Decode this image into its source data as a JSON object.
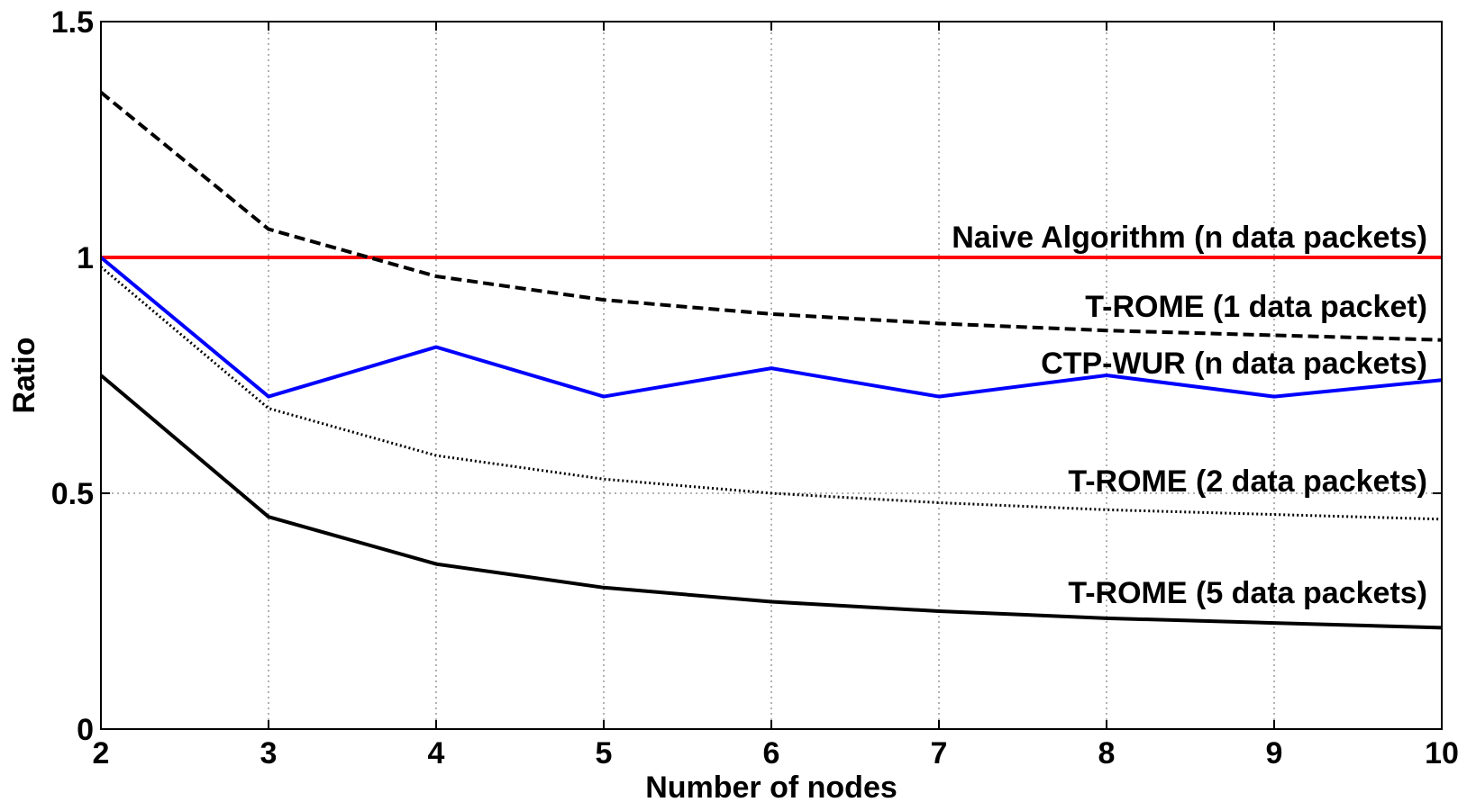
{
  "chart_data": {
    "type": "line",
    "title": "",
    "xlabel": "Number of nodes",
    "ylabel": "Ratio",
    "xlim": [
      2,
      10
    ],
    "ylim": [
      0,
      1.5
    ],
    "x": [
      2,
      3,
      4,
      5,
      6,
      7,
      8,
      9,
      10
    ],
    "xticks": [
      "2",
      "3",
      "4",
      "5",
      "6",
      "7",
      "8",
      "9",
      "10"
    ],
    "yticks": [
      {
        "value": 0,
        "label": "0"
      },
      {
        "value": 0.5,
        "label": "0.5"
      },
      {
        "value": 1,
        "label": "1"
      },
      {
        "value": 1.5,
        "label": "1.5"
      }
    ],
    "grid": true,
    "series": [
      {
        "id": "naive",
        "name": "Naive Algorithm (n data packets)",
        "color": "#ff0000",
        "style": "solid",
        "values": [
          1,
          1,
          1,
          1,
          1,
          1,
          1,
          1,
          1
        ]
      },
      {
        "id": "trome1",
        "name": "T-ROME (1 data packet)",
        "color": "#000000",
        "style": "dashed",
        "values": [
          1.35,
          1.06,
          0.96,
          0.91,
          0.88,
          0.86,
          0.845,
          0.835,
          0.825
        ]
      },
      {
        "id": "ctpwur",
        "name": "CTP-WUR (n data packets)",
        "color": "#0000ff",
        "style": "solid",
        "values": [
          1,
          0.705,
          0.81,
          0.705,
          0.765,
          0.705,
          0.75,
          0.705,
          0.74
        ]
      },
      {
        "id": "trome2",
        "name": "T-ROME (2 data packets)",
        "color": "#000000",
        "style": "dotted",
        "values": [
          0.98,
          0.68,
          0.58,
          0.53,
          0.5,
          0.48,
          0.465,
          0.455,
          0.445
        ]
      },
      {
        "id": "trome5",
        "name": "T-ROME (5 data packets)",
        "color": "#000000",
        "style": "solid",
        "values": [
          0.75,
          0.45,
          0.35,
          0.3,
          0.27,
          0.25,
          0.235,
          0.225,
          0.215
        ]
      }
    ]
  }
}
